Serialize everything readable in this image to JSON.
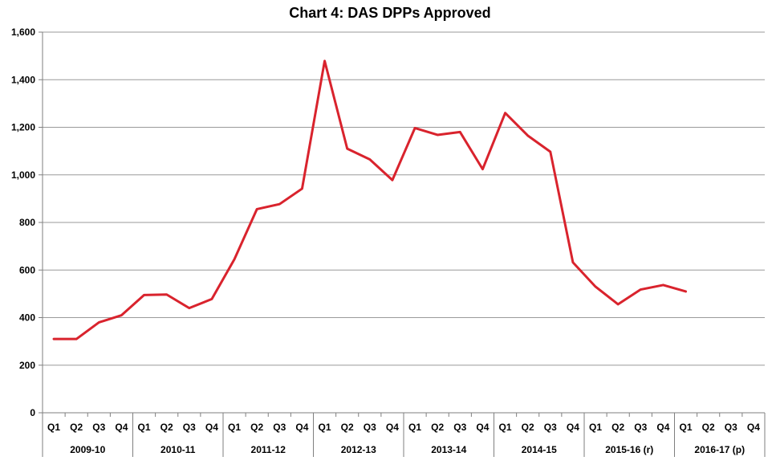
{
  "chart_data": {
    "type": "line",
    "title": "Chart 4: DAS DPPs Approved",
    "xlabel": "",
    "ylabel": "",
    "ylim": [
      0,
      1600
    ],
    "yticks": [
      0,
      200,
      400,
      600,
      800,
      1000,
      1200,
      1400,
      1600
    ],
    "ytick_labels": [
      "0",
      "200",
      "400",
      "600",
      "800",
      "1,000",
      "1,200",
      "1,400",
      "1,600"
    ],
    "groups": [
      {
        "label": "2009-10",
        "quarters": [
          "Q1",
          "Q2",
          "Q3",
          "Q4"
        ]
      },
      {
        "label": "2010-11",
        "quarters": [
          "Q1",
          "Q2",
          "Q3",
          "Q4"
        ]
      },
      {
        "label": "2011-12",
        "quarters": [
          "Q1",
          "Q2",
          "Q3",
          "Q4"
        ]
      },
      {
        "label": "2012-13",
        "quarters": [
          "Q1",
          "Q2",
          "Q3",
          "Q4"
        ]
      },
      {
        "label": "2013-14",
        "quarters": [
          "Q1",
          "Q2",
          "Q3",
          "Q4"
        ]
      },
      {
        "label": "2014-15",
        "quarters": [
          "Q1",
          "Q2",
          "Q3",
          "Q4"
        ]
      },
      {
        "label": "2015-16 (r)",
        "quarters": [
          "Q1",
          "Q2",
          "Q3",
          "Q4"
        ]
      },
      {
        "label": "2016-17 (p)",
        "quarters": [
          "Q1",
          "Q2",
          "Q3",
          "Q4"
        ]
      }
    ],
    "series": [
      {
        "color": "#d9232d",
        "values": [
          310,
          310,
          380,
          410,
          495,
          497,
          440,
          478,
          645,
          856,
          877,
          942,
          1479,
          1110,
          1065,
          978,
          1197,
          1168,
          1180,
          1024,
          1260,
          1165,
          1097,
          632,
          530,
          456,
          518,
          537,
          510,
          null,
          null,
          null
        ]
      }
    ],
    "grid": true,
    "legend": "none"
  }
}
